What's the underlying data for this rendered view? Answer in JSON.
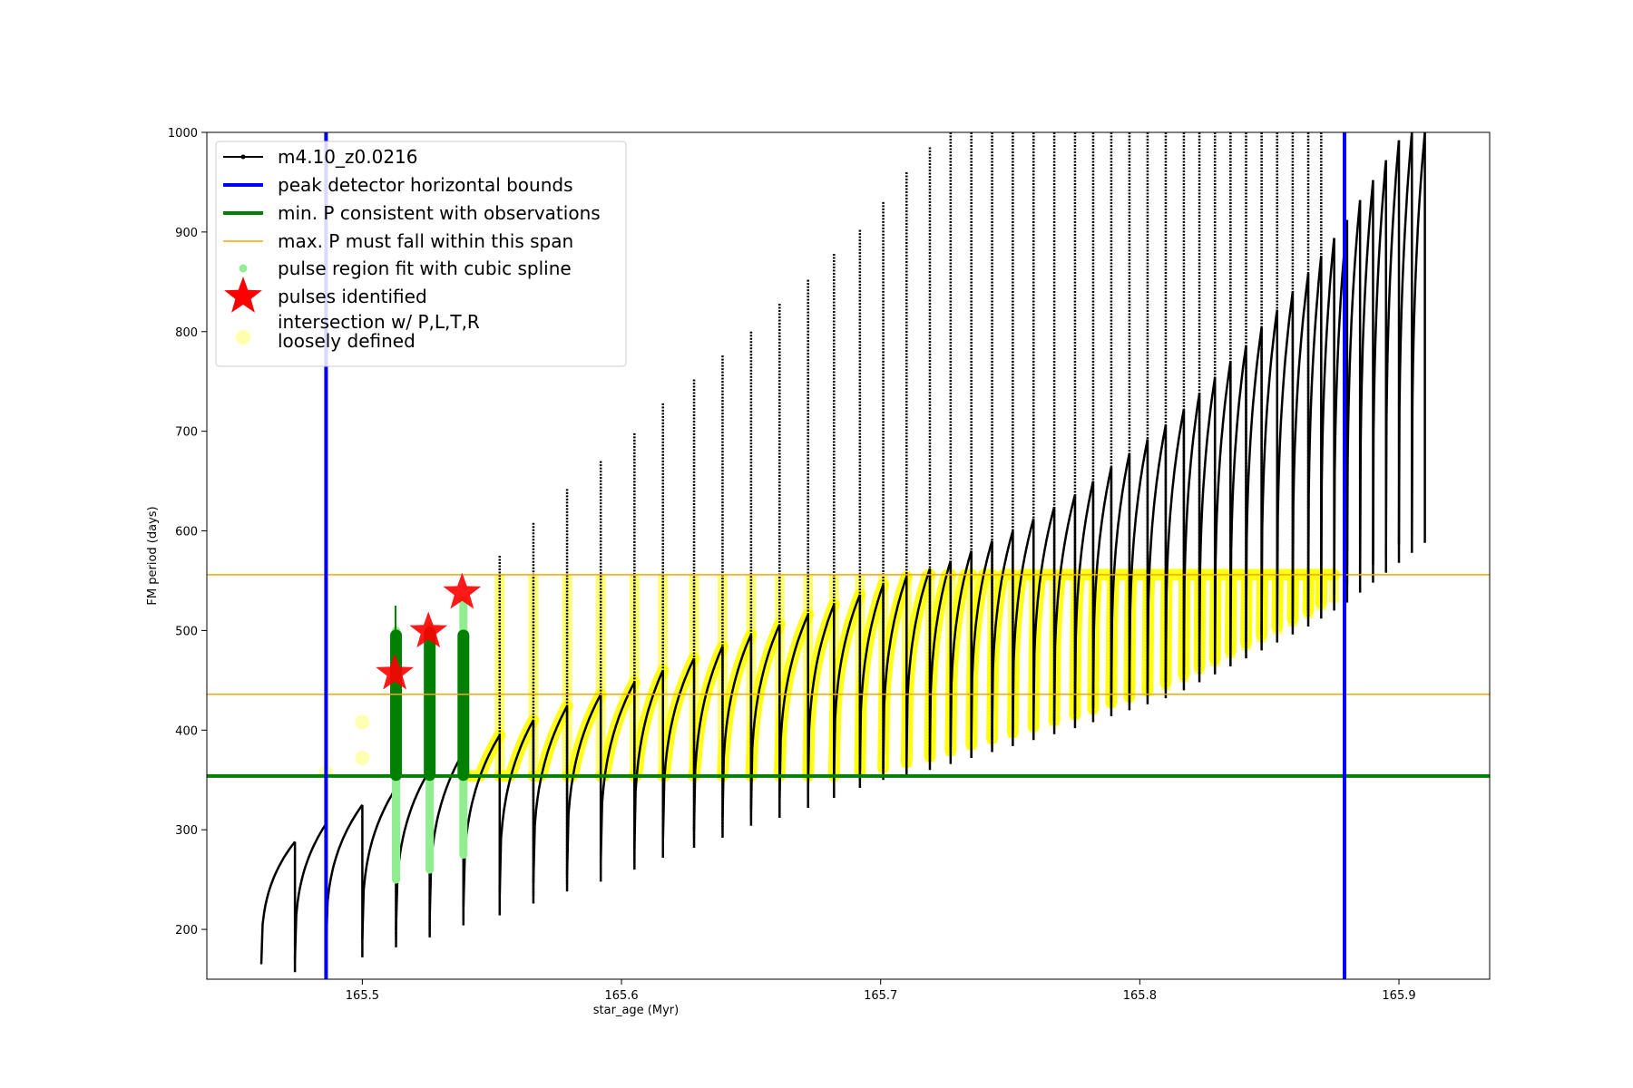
{
  "chart_data": {
    "type": "line",
    "xlabel": "star_age (Myr)",
    "ylabel": "FM period (days)",
    "xlim": [
      165.44,
      165.935
    ],
    "ylim": [
      150,
      1000
    ],
    "xticks": [
      165.5,
      165.6,
      165.7,
      165.8,
      165.9
    ],
    "xtick_labels": [
      "165.5",
      "165.6",
      "165.7",
      "165.8",
      "165.9"
    ],
    "yticks": [
      200,
      300,
      400,
      500,
      600,
      700,
      800,
      900,
      1000
    ],
    "ytick_labels": [
      "200",
      "300",
      "400",
      "500",
      "600",
      "700",
      "800",
      "900",
      "1000"
    ],
    "grid": false,
    "legend_position": "top-left",
    "legend": [
      {
        "label": "m4.10_z0.0216",
        "style": "line-marker",
        "color": "#000000"
      },
      {
        "label": "peak detector horizontal bounds",
        "style": "thick-line",
        "color": "#0000ff"
      },
      {
        "label": "min. P consistent with observations",
        "style": "thick-line",
        "color": "#008000"
      },
      {
        "label": "max. P must fall within this span",
        "style": "thin-line",
        "color": "#ffa500"
      },
      {
        "label": "pulse region fit with cubic spline",
        "style": "dot",
        "color": "#90ee90"
      },
      {
        "label": "pulses identified",
        "style": "star",
        "color": "#ff0000"
      },
      {
        "label": "intersection w/ P,L,T,R",
        "label2": "loosely defined",
        "style": "big-dot",
        "color": "#ffffaa"
      }
    ],
    "vertical_lines": {
      "label": "peak detector horizontal bounds",
      "x": [
        165.486,
        165.879
      ],
      "color": "#0000ff"
    },
    "hlines_orange": {
      "label": "max. P must fall within this span",
      "y": [
        436,
        556
      ],
      "color": "#ffa500"
    },
    "hline_green": {
      "label": "min. P consistent with observations",
      "y": 354,
      "color": "#008000"
    },
    "series": [
      {
        "name": "m4.10_z0.0216",
        "description_points": "pulse cycles: [x_start, y_min, y_peak, x_end]",
        "pulses": [
          [
            165.461,
            165,
            288,
            165.474
          ],
          [
            165.474,
            170,
            306,
            165.486
          ],
          [
            165.486,
            180,
            325,
            165.5
          ],
          [
            165.5,
            190,
            342,
            165.513
          ],
          [
            165.513,
            200,
            360,
            165.526
          ],
          [
            165.526,
            212,
            378,
            165.539
          ],
          [
            165.539,
            222,
            395,
            165.553
          ],
          [
            165.553,
            234,
            410,
            165.566
          ],
          [
            165.566,
            246,
            424,
            165.579
          ],
          [
            165.579,
            256,
            436,
            165.592
          ],
          [
            165.592,
            268,
            448,
            165.605
          ],
          [
            165.605,
            280,
            460,
            165.616
          ],
          [
            165.616,
            290,
            472,
            165.628
          ],
          [
            165.628,
            300,
            484,
            165.639
          ],
          [
            165.639,
            312,
            496,
            165.65
          ],
          [
            165.65,
            320,
            506,
            165.661
          ],
          [
            165.661,
            330,
            516,
            165.672
          ],
          [
            165.672,
            340,
            526,
            165.682
          ],
          [
            165.682,
            350,
            536,
            165.692
          ],
          [
            165.692,
            358,
            546,
            165.701
          ],
          [
            165.701,
            362,
            554,
            165.71
          ],
          [
            165.71,
            368,
            562,
            165.719
          ],
          [
            165.719,
            374,
            570,
            165.727
          ],
          [
            165.727,
            380,
            580,
            165.735
          ],
          [
            165.735,
            386,
            590,
            165.743
          ],
          [
            165.743,
            392,
            600,
            165.751
          ],
          [
            165.751,
            398,
            612,
            165.759
          ],
          [
            165.759,
            404,
            624,
            165.767
          ],
          [
            165.767,
            410,
            636,
            165.775
          ],
          [
            165.775,
            416,
            650,
            165.782
          ],
          [
            165.782,
            422,
            664,
            165.789
          ],
          [
            165.789,
            428,
            678,
            165.796
          ],
          [
            165.796,
            434,
            692,
            165.803
          ],
          [
            165.803,
            440,
            706,
            165.81
          ],
          [
            165.81,
            448,
            722,
            165.817
          ],
          [
            165.817,
            456,
            738,
            165.823
          ],
          [
            165.823,
            464,
            754,
            165.829
          ],
          [
            165.829,
            472,
            770,
            165.835
          ],
          [
            165.835,
            480,
            786,
            165.841
          ],
          [
            165.841,
            488,
            804,
            165.847
          ],
          [
            165.847,
            496,
            822,
            165.853
          ],
          [
            165.853,
            504,
            840,
            165.859
          ],
          [
            165.859,
            512,
            858,
            165.865
          ],
          [
            165.865,
            520,
            876,
            165.87
          ],
          [
            165.87,
            528,
            894,
            165.875
          ],
          [
            165.875,
            536,
            912,
            165.88
          ],
          [
            165.88,
            546,
            932,
            165.885
          ],
          [
            165.885,
            556,
            952,
            165.89
          ],
          [
            165.89,
            566,
            972,
            165.895
          ],
          [
            165.895,
            576,
            992,
            165.9
          ],
          [
            165.9,
            586,
            1000,
            165.905
          ],
          [
            165.905,
            596,
            1000,
            165.91
          ]
        ],
        "spikes": [
          [
            165.513,
            360
          ],
          [
            165.526,
            380
          ],
          [
            165.539,
            400
          ],
          [
            165.553,
            575
          ],
          [
            165.566,
            608
          ],
          [
            165.579,
            642
          ],
          [
            165.592,
            670
          ],
          [
            165.605,
            698
          ],
          [
            165.616,
            728
          ],
          [
            165.628,
            752
          ],
          [
            165.639,
            776
          ],
          [
            165.65,
            800
          ],
          [
            165.661,
            828
          ],
          [
            165.672,
            852
          ],
          [
            165.682,
            878
          ],
          [
            165.692,
            902
          ],
          [
            165.701,
            930
          ],
          [
            165.71,
            960
          ],
          [
            165.719,
            985
          ],
          [
            165.727,
            1000
          ],
          [
            165.735,
            1000
          ],
          [
            165.743,
            1000
          ],
          [
            165.751,
            1000
          ],
          [
            165.759,
            1000
          ],
          [
            165.767,
            1000
          ],
          [
            165.775,
            1000
          ],
          [
            165.782,
            1000
          ],
          [
            165.789,
            1000
          ],
          [
            165.796,
            1000
          ],
          [
            165.803,
            1000
          ],
          [
            165.81,
            1000
          ],
          [
            165.817,
            1000
          ],
          [
            165.823,
            1000
          ],
          [
            165.829,
            1000
          ],
          [
            165.835,
            1000
          ],
          [
            165.841,
            1000
          ],
          [
            165.847,
            1000
          ],
          [
            165.853,
            1000
          ],
          [
            165.859,
            1000
          ],
          [
            165.865,
            1000
          ],
          [
            165.87,
            1000
          ]
        ],
        "color": "#000000"
      },
      {
        "name": "pulse region fit with cubic spline",
        "segments": [
          {
            "x": 165.513,
            "y_from": 250,
            "y_to": 500
          },
          {
            "x": 165.526,
            "y_from": 260,
            "y_to": 505
          },
          {
            "x": 165.539,
            "y_from": 275,
            "y_to": 530
          }
        ],
        "dark_segments": [
          {
            "x": 165.513,
            "y_from": 355,
            "y_to": 495
          },
          {
            "x": 165.526,
            "y_from": 355,
            "y_to": 498
          },
          {
            "x": 165.539,
            "y_from": 355,
            "y_to": 495
          }
        ],
        "color": "#90ee90"
      },
      {
        "name": "pulses identified",
        "points": [
          [
            165.5125,
            457
          ],
          [
            165.5255,
            499
          ],
          [
            165.5385,
            538
          ]
        ],
        "color": "#ff0000"
      },
      {
        "name": "intersection w/ P,L,T,R\nloosely defined",
        "color": "#ffff00"
      }
    ]
  }
}
